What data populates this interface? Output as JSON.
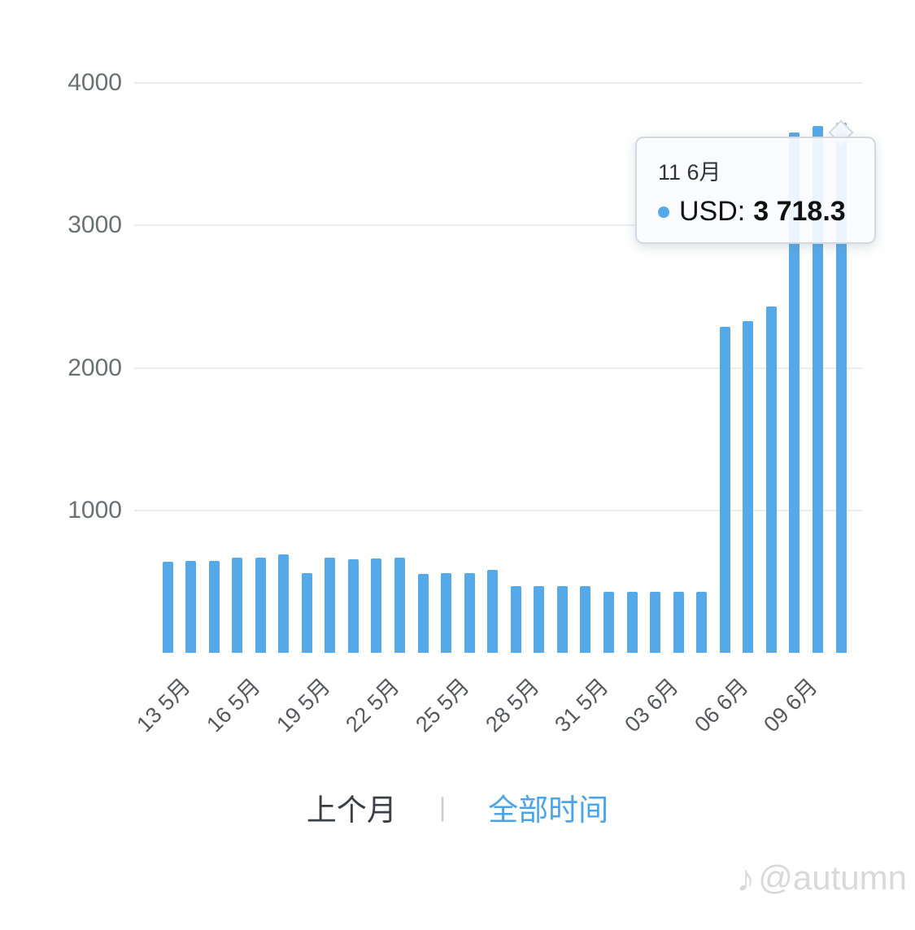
{
  "chart_data": {
    "type": "bar",
    "title": "",
    "xlabel": "",
    "ylabel": "",
    "series_name": "USD",
    "x": [
      "13 5月",
      "14 5月",
      "15 5月",
      "16 5月",
      "17 5月",
      "18 5月",
      "19 5月",
      "20 5月",
      "21 5月",
      "22 5月",
      "23 5月",
      "24 5月",
      "25 5月",
      "26 5月",
      "27 5月",
      "28 5月",
      "29 5月",
      "30 5月",
      "31 5月",
      "01 6月",
      "02 6月",
      "03 6月",
      "04 6月",
      "05 6月",
      "06 6月",
      "07 6月",
      "08 6月",
      "09 6月",
      "10 6月",
      "11 6月"
    ],
    "values": [
      640,
      645,
      645,
      665,
      668,
      690,
      560,
      665,
      655,
      662,
      668,
      555,
      558,
      558,
      582,
      468,
      468,
      468,
      468,
      430,
      430,
      430,
      430,
      430,
      2290,
      2330,
      2430,
      3650,
      3700,
      3718.3
    ],
    "x_tick_labels_shown": [
      "13 5月",
      "16 5月",
      "19 5月",
      "22 5月",
      "25 5月",
      "28 5月",
      "31 5月",
      "03 6月",
      "06 6月",
      "09 6月"
    ],
    "yticks": [
      1000,
      2000,
      3000,
      4000
    ],
    "ylim": [
      0,
      4300
    ],
    "grid": "horizontal",
    "legend": "none"
  },
  "colors": {
    "bar": "#55A9E8",
    "accent": "#4BA3E8",
    "grid": "#EAEDEF"
  },
  "tooltip": {
    "date": "11 6月",
    "series_label": "USD:",
    "value": "3 718.3"
  },
  "footer": {
    "last_month_label": "上个月",
    "separator": "|",
    "all_time_label": "全部时间"
  },
  "watermark": {
    "icon": "music-note",
    "text": "@autumn"
  }
}
